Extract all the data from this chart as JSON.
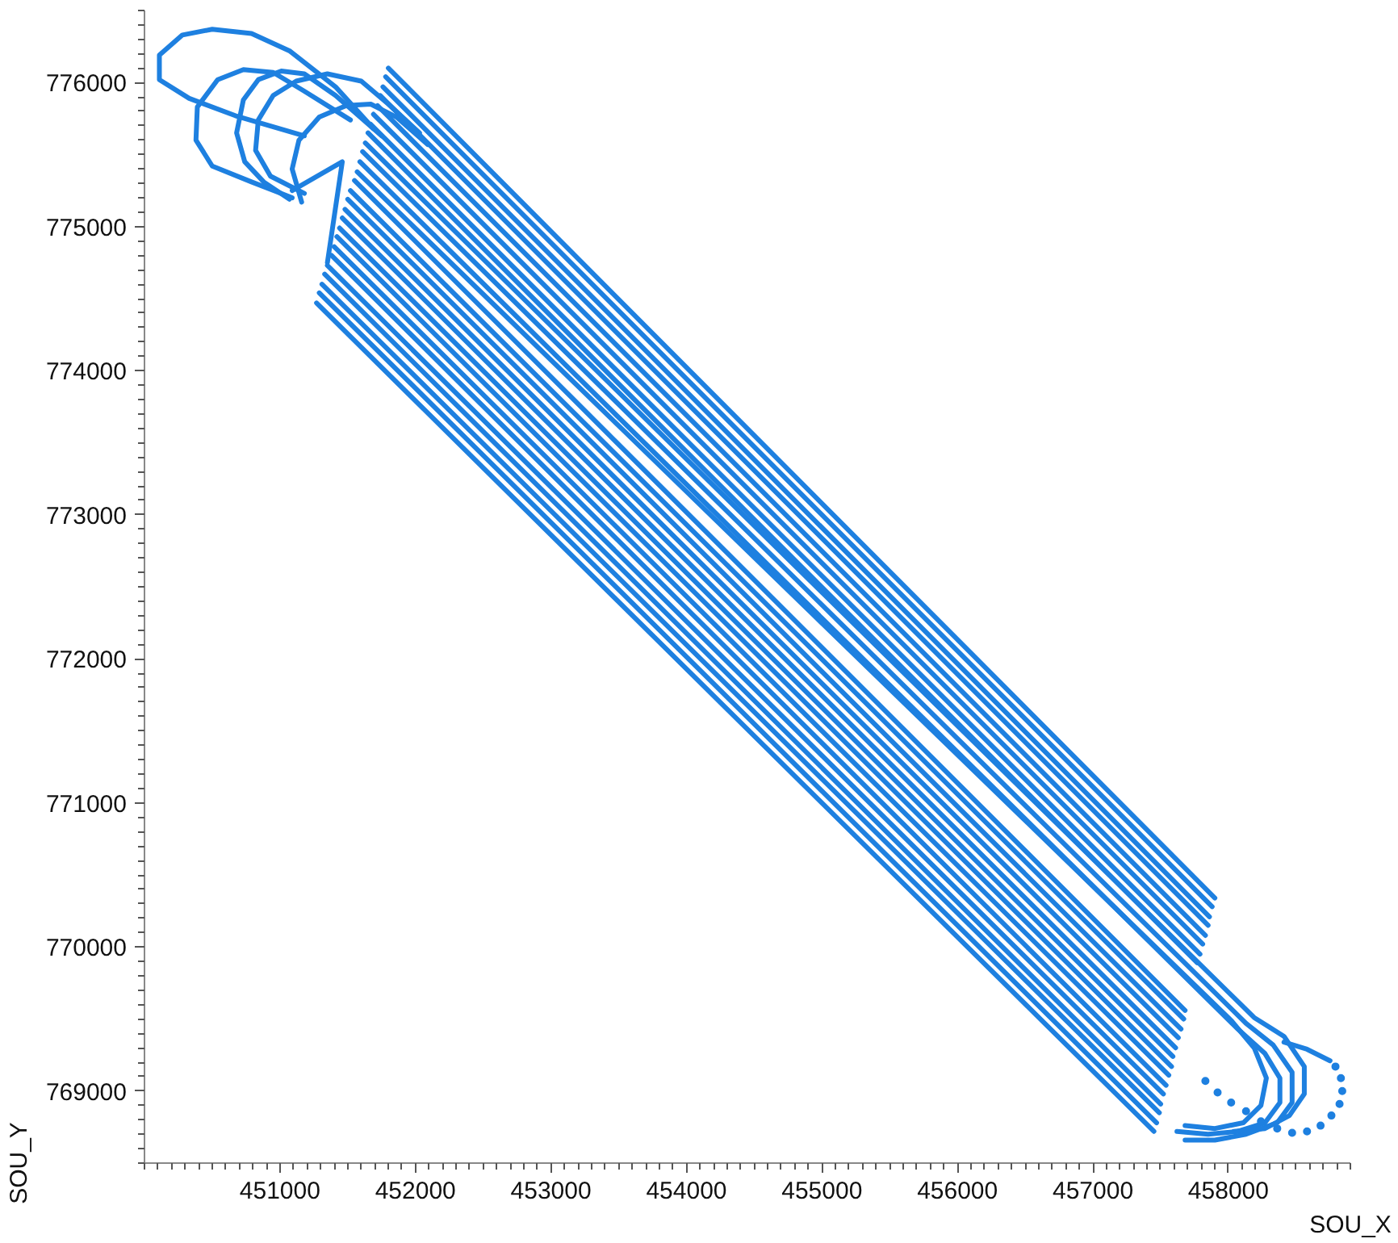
{
  "chart_data": {
    "type": "line",
    "xlabel": "SOU_X",
    "ylabel": "SOU_Y",
    "xlim": [
      450000,
      458900
    ],
    "ylim": [
      768500,
      776500
    ],
    "xticks": [
      451000,
      452000,
      453000,
      454000,
      455000,
      456000,
      457000,
      458000
    ],
    "yticks": [
      769000,
      770000,
      771000,
      772000,
      773000,
      774000,
      775000,
      776000
    ],
    "grid": false,
    "series": [
      {
        "color": "#1e80e0",
        "x": [
          451270,
          457450
        ],
        "values": [
          774470,
          768720
        ]
      },
      {
        "color": "#1e80e0",
        "x": [
          451290,
          457470
        ],
        "values": [
          774540,
          768780
        ]
      },
      {
        "color": "#1e80e0",
        "x": [
          451310,
          457490
        ],
        "values": [
          774600,
          768850
        ]
      },
      {
        "color": "#1e80e0",
        "x": [
          451330,
          457500
        ],
        "values": [
          774670,
          768910
        ]
      },
      {
        "color": "#1e80e0",
        "x": [
          451350,
          457520
        ],
        "values": [
          774730,
          768980
        ]
      },
      {
        "color": "#1e80e0",
        "x": [
          451380,
          457540
        ],
        "values": [
          774800,
          769040
        ]
      },
      {
        "color": "#1e80e0",
        "x": [
          451400,
          457560
        ],
        "values": [
          774860,
          769110
        ]
      },
      {
        "color": "#1e80e0",
        "x": [
          451420,
          457580
        ],
        "values": [
          774930,
          769170
        ]
      },
      {
        "color": "#1e80e0",
        "x": [
          451440,
          457590
        ],
        "values": [
          774990,
          769240
        ]
      },
      {
        "color": "#1e80e0",
        "x": [
          451460,
          457610
        ],
        "values": [
          775060,
          769300
        ]
      },
      {
        "color": "#1e80e0",
        "x": [
          451480,
          457630
        ],
        "values": [
          775120,
          769370
        ]
      },
      {
        "color": "#1e80e0",
        "x": [
          451500,
          457650
        ],
        "values": [
          775190,
          769430
        ]
      },
      {
        "color": "#1e80e0",
        "x": [
          451520,
          457670
        ],
        "values": [
          775250,
          769500
        ]
      },
      {
        "color": "#1e80e0",
        "x": [
          451550,
          457680
        ],
        "values": [
          775320,
          769560
        ]
      },
      {
        "color": "#1e80e0",
        "x": [
          451570,
          458020,
          458190,
          458280,
          458240,
          458110,
          457900,
          457680
        ],
        "values": [
          775380,
          769490,
          769300,
          769090,
          768900,
          768780,
          768740,
          768760
        ]
      },
      {
        "color": "#1e80e0",
        "x": [
          451590,
          458070,
          458270,
          458380,
          458380,
          458270,
          458070,
          457850,
          457620
        ],
        "values": [
          775450,
          769430,
          769260,
          769090,
          768920,
          768780,
          768720,
          768700,
          768720
        ]
      },
      {
        "color": "#1e80e0",
        "x": [
          451610,
          458130,
          458330,
          458470,
          458470,
          458360,
          458130,
          457900,
          457680
        ],
        "values": [
          775520,
          769470,
          769320,
          769130,
          768920,
          768780,
          768700,
          768660,
          768660
        ]
      },
      {
        "color": "#1e80e0",
        "x": [
          451630,
          458190,
          458410,
          458560,
          458560,
          458450,
          458270,
          458040
        ],
        "values": [
          775580,
          769510,
          769380,
          769170,
          768980,
          768830,
          768740,
          768720
        ]
      },
      {
        "color": "#1e80e0",
        "x": [
          451650,
          457770
        ],
        "values": [
          775650,
          769890
        ]
      },
      {
        "color": "#1e80e0",
        "x": [
          451670,
          457790
        ],
        "values": [
          775710,
          769950
        ]
      },
      {
        "color": "#1e80e0",
        "x": [
          451690,
          457810
        ],
        "values": [
          775780,
          770020
        ]
      },
      {
        "color": "#1e80e0",
        "x": [
          451720,
          457830
        ],
        "values": [
          775840,
          770080
        ]
      },
      {
        "color": "#1e80e0",
        "x": [
          451740,
          457850
        ],
        "values": [
          775910,
          770150
        ]
      },
      {
        "color": "#1e80e0",
        "x": [
          451760,
          457860
        ],
        "values": [
          775970,
          770210
        ]
      },
      {
        "color": "#1e80e0",
        "x": [
          451780,
          457880
        ],
        "values": [
          776040,
          770280
        ]
      },
      {
        "color": "#1e80e0",
        "x": [
          451800,
          457900
        ],
        "values": [
          776100,
          770340
        ]
      },
      {
        "color": "#1e80e0",
        "x": [
          451180,
          450670,
          450330,
          450110,
          450110,
          450280,
          450500,
          450790,
          451070,
          451410,
          451690
        ],
        "values": [
          775630,
          775770,
          775890,
          776020,
          776190,
          776330,
          776370,
          776340,
          776220,
          775970,
          775680
        ]
      },
      {
        "color": "#1e80e0",
        "x": [
          451090,
          450790,
          450500,
          450380,
          450390,
          450540,
          450730,
          450950,
          451180,
          451520
        ],
        "values": [
          775200,
          775310,
          775420,
          775600,
          775830,
          776020,
          776090,
          776070,
          775940,
          775740
        ]
      },
      {
        "color": "#1e80e0",
        "x": [
          451070,
          450880,
          450740,
          450680,
          450730,
          450840,
          451010,
          451180,
          451410,
          451750
        ],
        "values": [
          775190,
          775310,
          775450,
          775650,
          775880,
          776020,
          776080,
          776060,
          775910,
          775630
        ]
      },
      {
        "color": "#1e80e0",
        "x": [
          451180,
          450930,
          450820,
          450840,
          450950,
          451120,
          451350,
          451600,
          451800,
          452030
        ],
        "values": [
          775230,
          775350,
          775530,
          775740,
          775910,
          776010,
          776060,
          776010,
          775850,
          775650
        ]
      },
      {
        "color": "#1e80e0",
        "x": [
          451160,
          451090,
          451140,
          451290,
          451490,
          451670,
          451860,
          452090
        ],
        "values": [
          775170,
          775400,
          775600,
          775760,
          775840,
          775850,
          775760,
          775570
        ]
      },
      {
        "color": "#1e80e0",
        "x": [
          451090,
          451460,
          451350
        ],
        "values": [
          775250,
          775450,
          774750
        ]
      },
      {
        "color": "#1e80e0",
        "x": [
          458410,
          458580,
          458750
        ],
        "values": [
          769340,
          769290,
          769210
        ]
      },
      {
        "type": "scatter",
        "marker": "circle",
        "color": "#1e80e0",
        "x": [
          458790,
          458830,
          458840,
          458820,
          458760,
          458680,
          458580,
          458470,
          458360,
          458240,
          458130,
          458020,
          457920,
          457830
        ],
        "values": [
          769170,
          769090,
          769000,
          768910,
          768830,
          768760,
          768720,
          768710,
          768740,
          768790,
          768860,
          768920,
          768990,
          769070
        ]
      }
    ]
  }
}
